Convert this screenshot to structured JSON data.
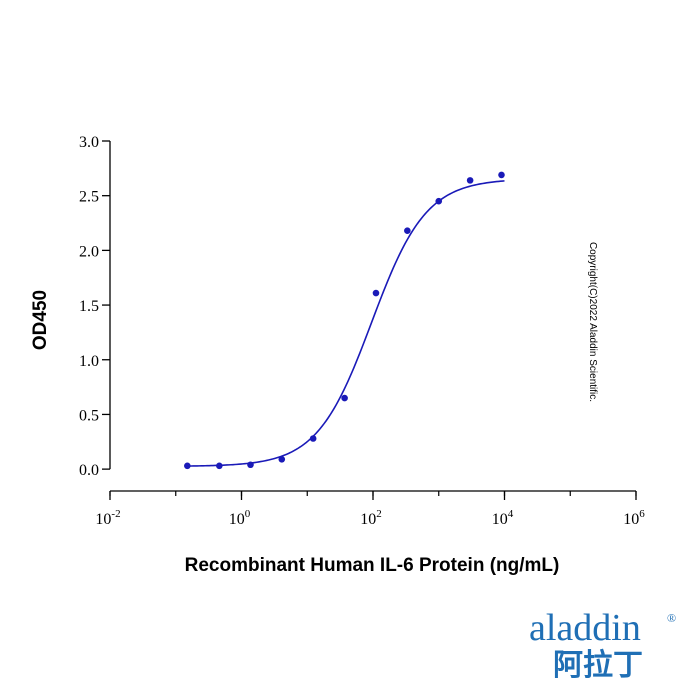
{
  "chart_data": {
    "type": "scatter",
    "xlabel": "Recombinant Human IL-6 Protein (ng/mL)",
    "ylabel": "OD450",
    "x_scale": "log",
    "xlim": [
      0.01,
      1000000
    ],
    "ylim": [
      -0.2,
      3.0
    ],
    "x_ticks": [
      {
        "value": 0.01,
        "base": "10",
        "exp": "-2"
      },
      {
        "value": 1,
        "base": "10",
        "exp": "0"
      },
      {
        "value": 100,
        "base": "10",
        "exp": "2"
      },
      {
        "value": 10000,
        "base": "10",
        "exp": "4"
      },
      {
        "value": 1000000,
        "base": "10",
        "exp": "6"
      }
    ],
    "y_ticks": [
      {
        "value": 0.0,
        "label": "0.0"
      },
      {
        "value": 0.5,
        "label": "0.5"
      },
      {
        "value": 1.0,
        "label": "1.0"
      },
      {
        "value": 1.5,
        "label": "1.5"
      },
      {
        "value": 2.0,
        "label": "2.0"
      },
      {
        "value": 2.5,
        "label": "2.5"
      },
      {
        "value": 3.0,
        "label": "3.0"
      }
    ],
    "points": [
      {
        "x": 0.15,
        "y": 0.03
      },
      {
        "x": 0.46,
        "y": 0.03
      },
      {
        "x": 1.37,
        "y": 0.04
      },
      {
        "x": 4.1,
        "y": 0.09
      },
      {
        "x": 12.3,
        "y": 0.28
      },
      {
        "x": 37,
        "y": 0.65
      },
      {
        "x": 111,
        "y": 1.61
      },
      {
        "x": 333,
        "y": 2.18
      },
      {
        "x": 1000,
        "y": 2.45
      },
      {
        "x": 3000,
        "y": 2.64
      },
      {
        "x": 9000,
        "y": 2.69
      }
    ],
    "fit": {
      "bottom": 0.025,
      "top": 2.655,
      "ec50": 95,
      "hill": 1.05,
      "x_range": [
        0.15,
        10000
      ]
    },
    "colors": {
      "points": "#1a1ab8",
      "curve": "#1a1ab8"
    },
    "grid": false,
    "legend": "none"
  },
  "copyright": "Copyright(C)2022 Aladdin Scientific.",
  "logo": {
    "brand_text": "aladdin",
    "registered_mark": "®",
    "chinese_text": "阿拉丁",
    "colors": {
      "text": "#1f6fb5",
      "accent": "#e9a21a"
    }
  }
}
